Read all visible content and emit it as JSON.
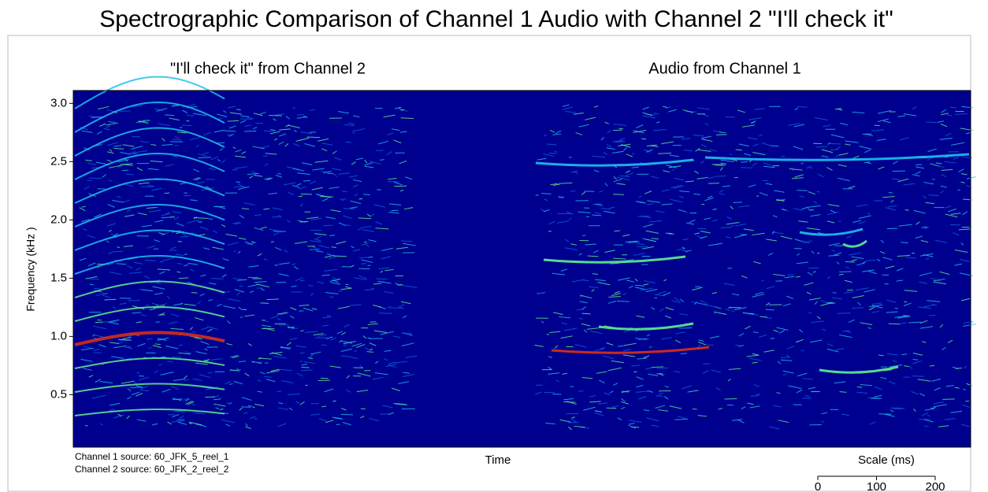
{
  "chart_data": {
    "type": "spectrogram",
    "title": "Spectrographic Comparison of Channel 1 Audio with Channel 2 \"I'll check it\"",
    "panels": [
      "\"I'll check it\" from Channel 2",
      "Audio from Channel 1"
    ],
    "ylabel": "Frequency (kHz )",
    "xlabel": "Time",
    "ylim": [
      0.05,
      3.11
    ],
    "yticks": [
      {
        "value": 3.0,
        "label": "3.0"
      },
      2.5,
      {
        "value": 2.0,
        "label": "2.0"
      },
      1.5,
      {
        "value": 1.0,
        "label": "1.0"
      },
      0.5
    ],
    "notes": [
      "Channel 1 source: 60_JFK_5_reel_1",
      "Channel 2 source: 60_JFK_2_reel_2"
    ],
    "scale_label": "Scale (ms)",
    "scale_lim": [
      0,
      200
    ],
    "scale_ticks": [
      0,
      100,
      200
    ],
    "background": "#00008f"
  }
}
